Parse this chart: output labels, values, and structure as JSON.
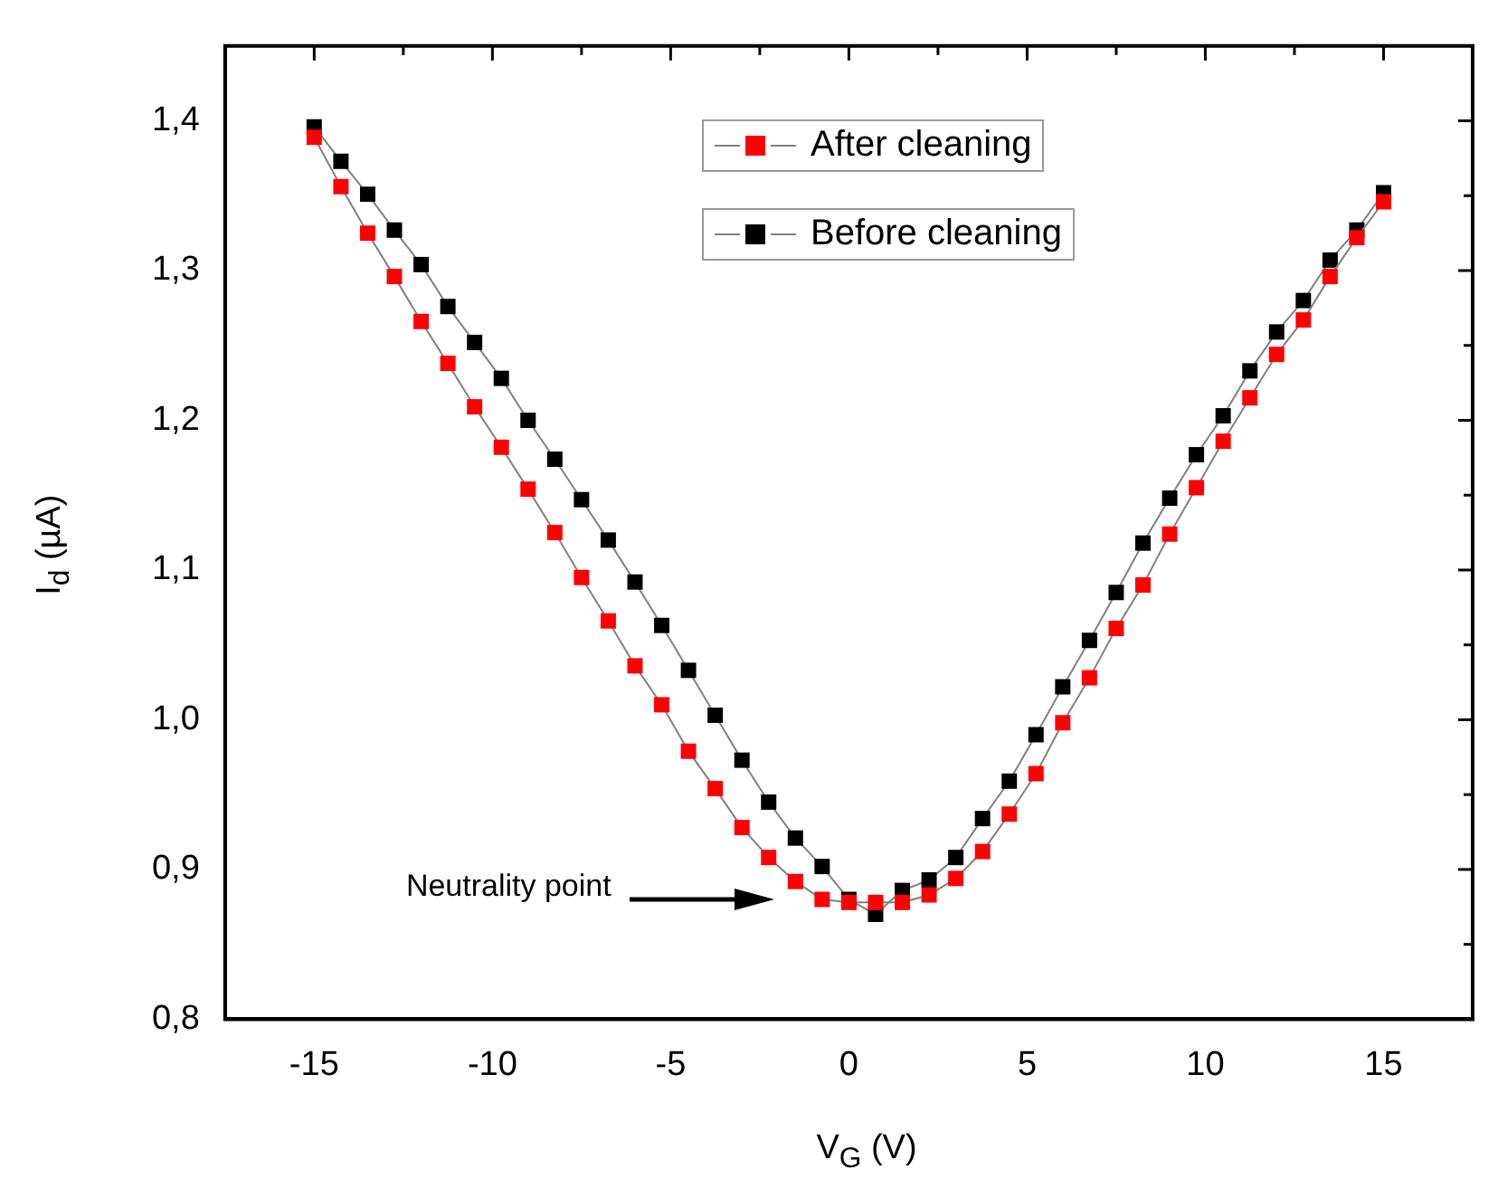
{
  "chart_data": {
    "type": "line",
    "xlabel": "V$_{G}$ (V)",
    "ylabel": "I$_{d}$ (µA)",
    "x": [
      -15,
      -14.25,
      -13.5,
      -12.75,
      -12,
      -11.25,
      -10.5,
      -9.75,
      -9,
      -8.25,
      -7.5,
      -6.75,
      -6,
      -5.25,
      -4.5,
      -3.75,
      -3,
      -2.25,
      -1.5,
      -0.75,
      0,
      0.75,
      1.5,
      2.25,
      3,
      3.75,
      4.5,
      5.25,
      6,
      6.75,
      7.5,
      8.25,
      9,
      9.75,
      10.5,
      11.25,
      12,
      12.75,
      13.5,
      14.25,
      15
    ],
    "series": [
      {
        "name": "After cleaning",
        "color": "#ff0000",
        "values": [
          1.389,
          1.356,
          1.325,
          1.296,
          1.266,
          1.238,
          1.209,
          1.182,
          1.154,
          1.125,
          1.095,
          1.066,
          1.036,
          1.01,
          0.979,
          0.954,
          0.928,
          0.908,
          0.892,
          0.88,
          0.878,
          0.878,
          0.878,
          0.883,
          0.894,
          0.912,
          0.937,
          0.964,
          0.998,
          1.028,
          1.061,
          1.09,
          1.124,
          1.155,
          1.186,
          1.215,
          1.244,
          1.267,
          1.296,
          1.322,
          1.346
        ]
      },
      {
        "name": "Before cleaning",
        "color": "#000000",
        "values": [
          1.396,
          1.373,
          1.351,
          1.327,
          1.304,
          1.276,
          1.252,
          1.228,
          1.2,
          1.174,
          1.147,
          1.12,
          1.092,
          1.063,
          1.033,
          1.003,
          0.973,
          0.945,
          0.921,
          0.902,
          0.88,
          0.87,
          0.886,
          0.893,
          0.908,
          0.934,
          0.959,
          0.99,
          1.022,
          1.053,
          1.085,
          1.118,
          1.148,
          1.177,
          1.203,
          1.233,
          1.259,
          1.28,
          1.307,
          1.327,
          1.352
        ]
      }
    ],
    "xlim": [
      -17.5,
      17.5
    ],
    "xticks": [
      -15,
      {
        "value": -12.5,
        "label": null
      },
      -10,
      {
        "value": -7.5,
        "label": null
      },
      -5,
      {
        "value": -2.5,
        "label": null
      },
      0,
      {
        "value": 2.5,
        "label": null
      },
      5,
      {
        "value": 7.5,
        "label": null
      },
      10,
      {
        "value": 12.5,
        "label": null
      },
      15
    ],
    "ylim": [
      0.8,
      1.45
    ],
    "yticks": [
      {
        "value": 0.8,
        "label": "0,8"
      },
      {
        "value": 0.85,
        "label": null
      },
      {
        "value": 0.9,
        "label": "0,9"
      },
      {
        "value": 0.95,
        "label": null
      },
      {
        "value": 1.0,
        "label": "1,0"
      },
      {
        "value": 1.05,
        "label": null
      },
      {
        "value": 1.1,
        "label": "1,1"
      },
      {
        "value": 1.15,
        "label": null
      },
      {
        "value": 1.2,
        "label": "1,2"
      },
      {
        "value": 1.25,
        "label": null
      },
      {
        "value": 1.3,
        "label": "1,3"
      },
      {
        "value": 1.35,
        "label": null
      },
      {
        "value": 1.4,
        "label": "1,4"
      }
    ],
    "annotations": [
      "Neutrality point"
    ],
    "grid": false,
    "legend": "top",
    "marker": "square",
    "line_style": "solid"
  }
}
